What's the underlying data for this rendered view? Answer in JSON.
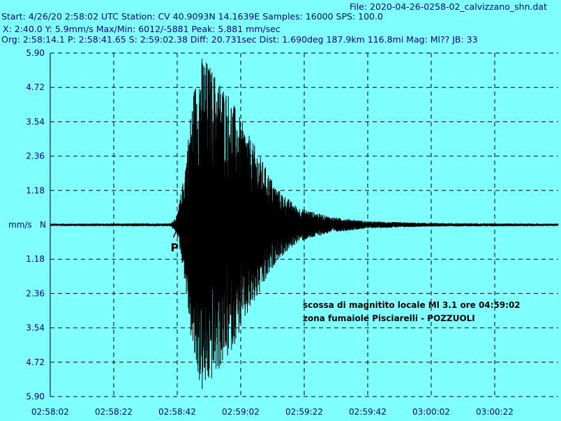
{
  "header": {
    "file": "File: 2020-04-26-0258-02_calvizzano_shn.dat",
    "line1": "Start: 4/26/20  2:58:02 UTC Station: CV 40.9093N 14.1639E Samples: 16000  SPS: 100.0",
    "line2": "X: 2:40.0 Y: 5.9mm/s Max/Min: 6012/-5881  Peak: 5.881 mm/sec",
    "line3": "Org: 2:58:14.1 P: 2:58:41.65 S: 2:59:02.38 Diff: 20.731sec Dist: 1.690deg 187.9km 116.8mi  Mag: Ml?? JB: 33"
  },
  "chart_data": {
    "type": "line",
    "x_ticks": [
      "02:58:02",
      "02:58:22",
      "02:58:42",
      "02:59:02",
      "02:59:22",
      "02:59:42",
      "03:00:02",
      "03:00:22"
    ],
    "y_ticks": [
      "5.90",
      "4.72",
      "3.54",
      "2.36",
      "1.18",
      "N",
      "1.18",
      "2.36",
      "3.54",
      "4.72",
      "5.90"
    ],
    "y_tick_values": [
      5.9,
      4.72,
      3.54,
      2.36,
      1.18,
      0,
      -1.18,
      -2.36,
      -3.54,
      -4.72,
      -5.9
    ],
    "ylabel": "mm/s",
    "channel": "N",
    "ylim": [
      -5.9,
      5.9
    ],
    "xlim_seconds": [
      0,
      160
    ],
    "grid": true,
    "p_marker_label": "P",
    "p_arrival_seconds": 39.65,
    "peak_mm_s": 5.881,
    "envelope": [
      {
        "t": 0,
        "a": 0.04
      },
      {
        "t": 38,
        "a": 0.05
      },
      {
        "t": 40,
        "a": 0.35
      },
      {
        "t": 42,
        "a": 1.6
      },
      {
        "t": 45,
        "a": 4.6
      },
      {
        "t": 48,
        "a": 5.88
      },
      {
        "t": 52,
        "a": 5.2
      },
      {
        "t": 56,
        "a": 4.6
      },
      {
        "t": 61,
        "a": 3.4
      },
      {
        "t": 66,
        "a": 2.4
      },
      {
        "t": 71,
        "a": 1.3
      },
      {
        "t": 78,
        "a": 0.6
      },
      {
        "t": 88,
        "a": 0.28
      },
      {
        "t": 100,
        "a": 0.12
      },
      {
        "t": 120,
        "a": 0.06
      },
      {
        "t": 160,
        "a": 0.04
      }
    ],
    "annotations": [
      "scossa di magnitito locale Ml 3.1 ore 04:59:02",
      "zona fumaiole Pisciarelli - POZZUOLI"
    ]
  },
  "colors": {
    "background": "#80ffff",
    "grid": "#000000",
    "trace": "#000000",
    "labels": "#000080"
  }
}
